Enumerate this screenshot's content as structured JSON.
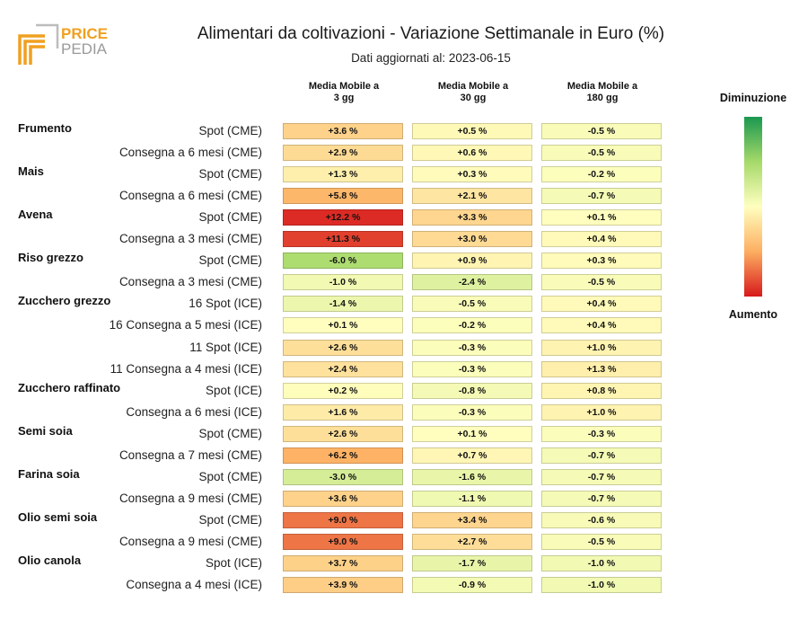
{
  "logo": {
    "line1": "PRICE",
    "line2": "PEDIA",
    "colors": {
      "orange": "#F0A020",
      "grey": "#9a9a9a"
    }
  },
  "header": {
    "title": "Alimentari da coltivazioni - Variazione Settimanale in Euro (%)",
    "subtitle": "Dati aggiornati al: 2023-06-15"
  },
  "legend": {
    "top": "Diminuzione",
    "bottom": "Aumento",
    "colors": [
      "#1a9850",
      "#a6d96a",
      "#ffffbf",
      "#fdae61",
      "#d7191c"
    ]
  },
  "chart_data": {
    "type": "table",
    "title": "Alimentari da coltivazioni - Variazione Settimanale in Euro (%)",
    "columns": [
      {
        "line1": "Media Mobile a",
        "line2": "3 gg"
      },
      {
        "line1": "Media Mobile a",
        "line2": "30 gg"
      },
      {
        "line1": "Media Mobile a",
        "line2": "180 gg"
      }
    ],
    "groups": [
      {
        "name": "Frumento",
        "rows": [
          {
            "label": "Spot (CME)",
            "values": [
              3.6,
              0.5,
              -0.5
            ],
            "text": [
              "+3.6 %",
              "+0.5 %",
              "-0.5 %"
            ]
          },
          {
            "label": "Consegna a 6 mesi (CME)",
            "values": [
              2.9,
              0.6,
              -0.5
            ],
            "text": [
              "+2.9 %",
              "+0.6 %",
              "-0.5 %"
            ]
          }
        ]
      },
      {
        "name": "Mais",
        "rows": [
          {
            "label": "Spot (CME)",
            "values": [
              1.3,
              0.3,
              -0.2
            ],
            "text": [
              "+1.3 %",
              "+0.3 %",
              "-0.2 %"
            ]
          },
          {
            "label": "Consegna a 6 mesi (CME)",
            "values": [
              5.8,
              2.1,
              -0.7
            ],
            "text": [
              "+5.8 %",
              "+2.1 %",
              "-0.7 %"
            ]
          }
        ]
      },
      {
        "name": "Avena",
        "rows": [
          {
            "label": "Spot (CME)",
            "values": [
              12.2,
              3.3,
              0.1
            ],
            "text": [
              "+12.2 %",
              "+3.3 %",
              "+0.1 %"
            ]
          },
          {
            "label": "Consegna a 3 mesi (CME)",
            "values": [
              11.3,
              3.0,
              0.4
            ],
            "text": [
              "+11.3 %",
              "+3.0 %",
              "+0.4 %"
            ]
          }
        ]
      },
      {
        "name": "Riso grezzo",
        "rows": [
          {
            "label": "Spot (CME)",
            "values": [
              -6.0,
              0.9,
              0.3
            ],
            "text": [
              "-6.0 %",
              "+0.9 %",
              "+0.3 %"
            ]
          },
          {
            "label": "Consegna a 3 mesi (CME)",
            "values": [
              -1.0,
              -2.4,
              -0.5
            ],
            "text": [
              "-1.0 %",
              "-2.4 %",
              "-0.5 %"
            ]
          }
        ]
      },
      {
        "name": "Zucchero grezzo",
        "rows": [
          {
            "label": "16 Spot (ICE)",
            "values": [
              -1.4,
              -0.5,
              0.4
            ],
            "text": [
              "-1.4 %",
              "-0.5 %",
              "+0.4 %"
            ]
          },
          {
            "label": "16 Consegna a 5 mesi (ICE)",
            "values": [
              0.1,
              -0.2,
              0.4
            ],
            "text": [
              "+0.1 %",
              "-0.2 %",
              "+0.4 %"
            ]
          },
          {
            "label": "11 Spot (ICE)",
            "values": [
              2.6,
              -0.3,
              1.0
            ],
            "text": [
              "+2.6 %",
              "-0.3 %",
              "+1.0 %"
            ]
          },
          {
            "label": "11 Consegna a 4 mesi (ICE)",
            "values": [
              2.4,
              -0.3,
              1.3
            ],
            "text": [
              "+2.4 %",
              "-0.3 %",
              "+1.3 %"
            ]
          }
        ]
      },
      {
        "name": "Zucchero raffinato",
        "rows": [
          {
            "label": "Spot (ICE)",
            "values": [
              0.2,
              -0.8,
              0.8
            ],
            "text": [
              "+0.2 %",
              "-0.8 %",
              "+0.8 %"
            ]
          },
          {
            "label": "Consegna a 6 mesi (ICE)",
            "values": [
              1.6,
              -0.3,
              1.0
            ],
            "text": [
              "+1.6 %",
              "-0.3 %",
              "+1.0 %"
            ]
          }
        ]
      },
      {
        "name": "Semi soia",
        "rows": [
          {
            "label": "Spot (CME)",
            "values": [
              2.6,
              0.1,
              -0.3
            ],
            "text": [
              "+2.6 %",
              "+0.1 %",
              "-0.3 %"
            ]
          },
          {
            "label": "Consegna a 7 mesi (CME)",
            "values": [
              6.2,
              0.7,
              -0.7
            ],
            "text": [
              "+6.2 %",
              "+0.7 %",
              "-0.7 %"
            ]
          }
        ]
      },
      {
        "name": "Farina soia",
        "rows": [
          {
            "label": "Spot (CME)",
            "values": [
              -3.0,
              -1.6,
              -0.7
            ],
            "text": [
              "-3.0 %",
              "-1.6 %",
              "-0.7 %"
            ]
          },
          {
            "label": "Consegna a 9 mesi (CME)",
            "values": [
              3.6,
              -1.1,
              -0.7
            ],
            "text": [
              "+3.6 %",
              "-1.1 %",
              "-0.7 %"
            ]
          }
        ]
      },
      {
        "name": "Olio semi soia",
        "rows": [
          {
            "label": "Spot (CME)",
            "values": [
              9.0,
              3.4,
              -0.6
            ],
            "text": [
              "+9.0 %",
              "+3.4 %",
              "-0.6 %"
            ]
          },
          {
            "label": "Consegna a 9 mesi (CME)",
            "values": [
              9.0,
              2.7,
              -0.5
            ],
            "text": [
              "+9.0 %",
              "+2.7 %",
              "-0.5 %"
            ]
          }
        ]
      },
      {
        "name": "Olio canola",
        "rows": [
          {
            "label": "Spot (ICE)",
            "values": [
              3.7,
              -1.7,
              -1.0
            ],
            "text": [
              "+3.7 %",
              "-1.7 %",
              "-1.0 %"
            ]
          },
          {
            "label": "Consegna a 4 mesi (ICE)",
            "values": [
              3.9,
              -0.9,
              -1.0
            ],
            "text": [
              "+3.9 %",
              "-0.9 %",
              "-1.0 %"
            ]
          }
        ]
      }
    ]
  }
}
